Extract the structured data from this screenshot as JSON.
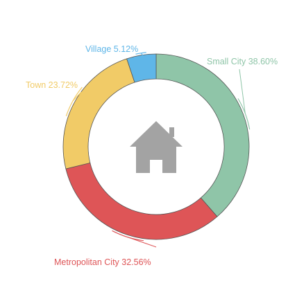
{
  "chart_data": {
    "type": "pie",
    "donut": true,
    "slices": [
      {
        "label": "Small City",
        "value": 38.6,
        "display": "Small City 38.60%",
        "color": "#8fc5a8"
      },
      {
        "label": "Metropolitan City",
        "value": 32.56,
        "display": "Metropolitan City 32.56%",
        "color": "#de5557"
      },
      {
        "label": "Town",
        "value": 23.72,
        "display": "Town 23.72%",
        "color": "#f1cb67"
      },
      {
        "label": "Village",
        "value": 5.12,
        "display": "Village 5.12%",
        "color": "#5fb6e8"
      }
    ],
    "center_icon": "house-icon",
    "center_icon_color": "#a3a3a3",
    "legend": "none"
  }
}
